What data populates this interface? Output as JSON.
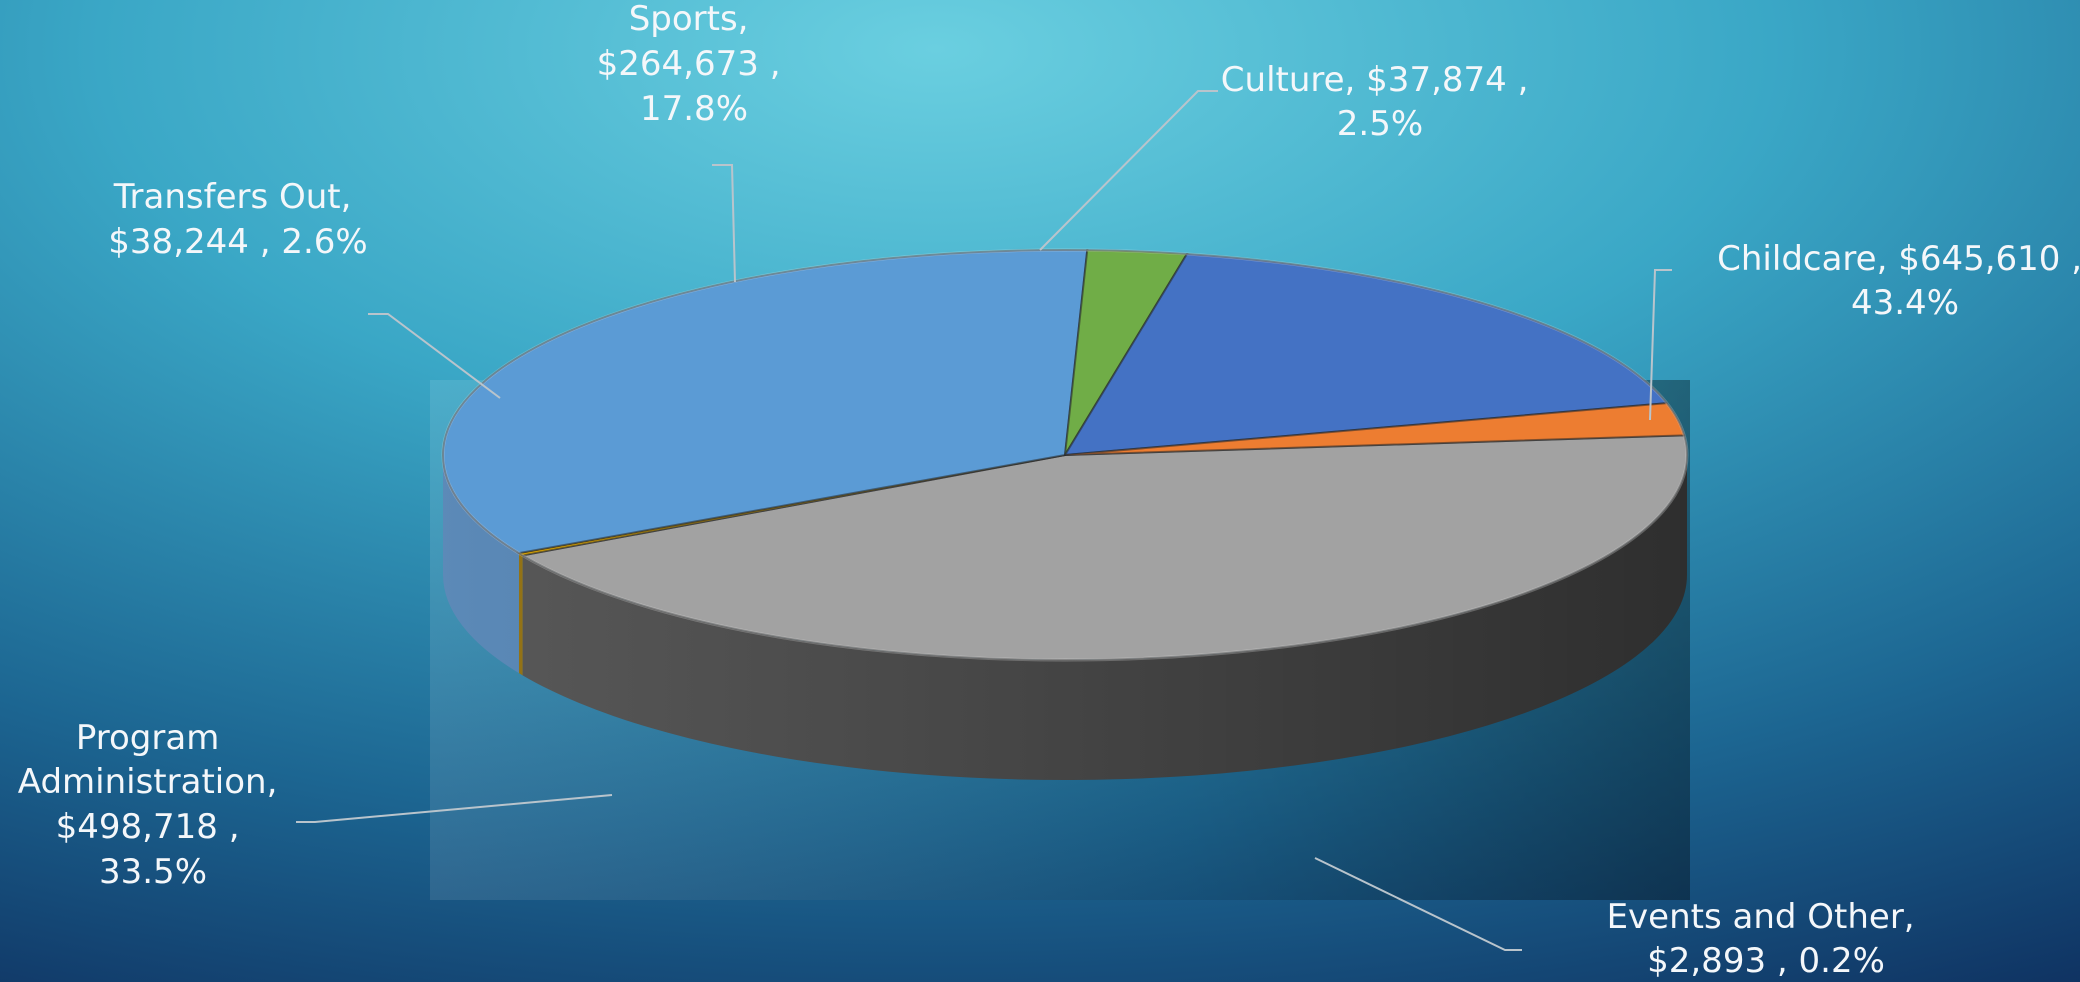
{
  "chart_data": {
    "type": "pie",
    "style": "3d",
    "title": "",
    "label_format": "category, value, percent",
    "currency": "$",
    "slices": [
      {
        "name": "Childcare",
        "value": 645610,
        "value_text": "$645,610",
        "percent_text": "43.4%",
        "color": "#a2a2a2",
        "side_color": "#474747"
      },
      {
        "name": "Events and Other",
        "value": 2893,
        "value_text": "$2,893",
        "percent_text": "0.2%",
        "color": "#f0b400",
        "side_color": "#8a6600"
      },
      {
        "name": "Program Administration",
        "value": 498718,
        "value_text": "$498,718",
        "percent_text": "33.5%",
        "color": "#5b9bd5",
        "side_color": "#4a7db0"
      },
      {
        "name": "Transfers Out",
        "value": 38244,
        "value_text": "$38,244",
        "percent_text": "2.6%",
        "color": "#70ad47",
        "side_color": "#4e7a31"
      },
      {
        "name": "Sports",
        "value": 264673,
        "value_text": "$264,673",
        "percent_text": "17.8%",
        "color": "#4472c4",
        "side_color": "#2f528f"
      },
      {
        "name": "Culture",
        "value": 37874,
        "value_text": "$37,874",
        "percent_text": "2.5%",
        "color": "#ed7d31",
        "side_color": "#a9551e"
      }
    ]
  },
  "labels": {
    "childcare": {
      "line1": "Childcare, $645,610 ,",
      "line2": "43.4%"
    },
    "events": {
      "line1": "Events and Other,",
      "line2": "$2,893 , 0.2%"
    },
    "program": {
      "line1": "Program",
      "line2": "Administration,",
      "line3": "$498,718 ,",
      "line4": "33.5%"
    },
    "transfers": {
      "line1": "Transfers Out,",
      "line2": "$38,244 , 2.6%"
    },
    "sports": {
      "line1": "Sports,",
      "line2": "$264,673 ,",
      "line3": "17.8%"
    },
    "culture": {
      "line1": "Culture, $37,874 ,",
      "line2": "2.5%"
    }
  },
  "background": {
    "light": "#6acfe0",
    "mid": "#3aa7c6",
    "dark": "#0d2a5a"
  }
}
